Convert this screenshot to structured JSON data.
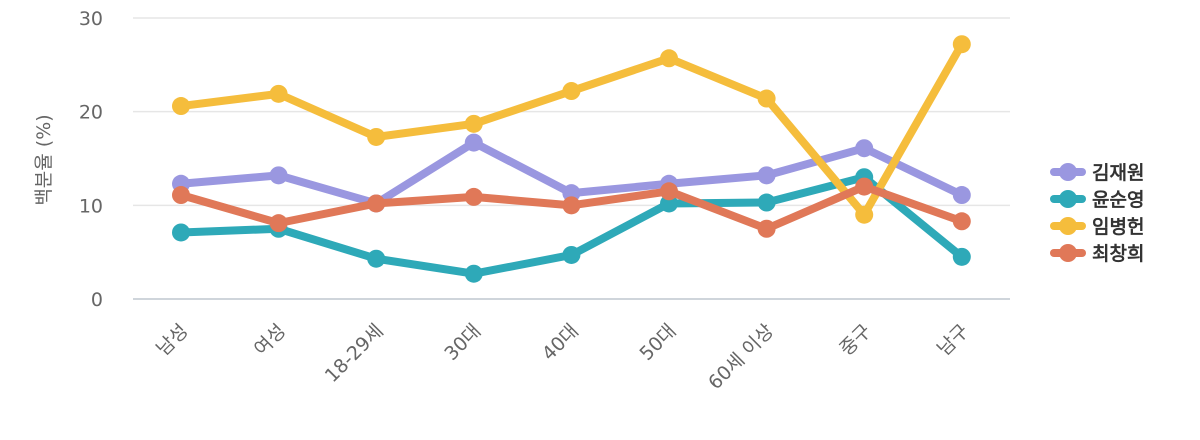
{
  "chart_data": {
    "type": "line",
    "ylabel": "백분율 (%)",
    "ylim": [
      0,
      30
    ],
    "yticks": [
      0,
      10,
      20,
      30
    ],
    "grid": true,
    "legend_position": "right",
    "categories": [
      "남성",
      "여성",
      "18-29세",
      "30대",
      "40대",
      "50대",
      "60세 이상",
      "중구",
      "남구"
    ],
    "series": [
      {
        "name": "김재원",
        "color": "#9a97e0",
        "values": [
          12.3,
          13.2,
          10.2,
          16.7,
          11.3,
          12.3,
          13.2,
          16.1,
          11.1
        ]
      },
      {
        "name": "윤순영",
        "color": "#2ea9b8",
        "values": [
          7.1,
          7.5,
          4.3,
          2.7,
          4.7,
          10.2,
          10.3,
          13.0,
          4.5
        ]
      },
      {
        "name": "임병헌",
        "color": "#f5bd3c",
        "values": [
          20.6,
          21.9,
          17.3,
          18.7,
          22.2,
          25.7,
          21.4,
          9.0,
          27.2
        ]
      },
      {
        "name": "최창희",
        "color": "#e07858",
        "values": [
          11.1,
          8.1,
          10.2,
          10.9,
          10.0,
          11.5,
          7.5,
          12.0,
          8.3
        ]
      }
    ]
  }
}
